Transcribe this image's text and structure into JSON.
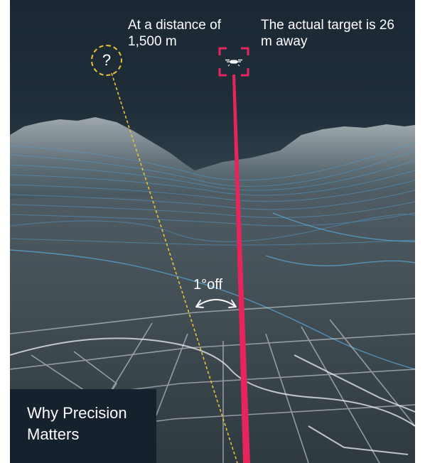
{
  "distance_caption": "At a distance of 1,500 m",
  "target_caption": "The actual target is 26 m away",
  "question_marker": "?",
  "angle_label": {
    "degree": "1°",
    "text": "off"
  },
  "title": "Why Precision Matters",
  "colors": {
    "laser_line": "#e8245c",
    "dashed_line": "#e8c23a",
    "target_bracket": "#e8245c",
    "contour_lines": "#4f9ecf",
    "title_background": "#15222e"
  },
  "icons": {
    "target": "drone-icon",
    "angle": "double-arrow-icon",
    "unknown": "question-icon"
  }
}
